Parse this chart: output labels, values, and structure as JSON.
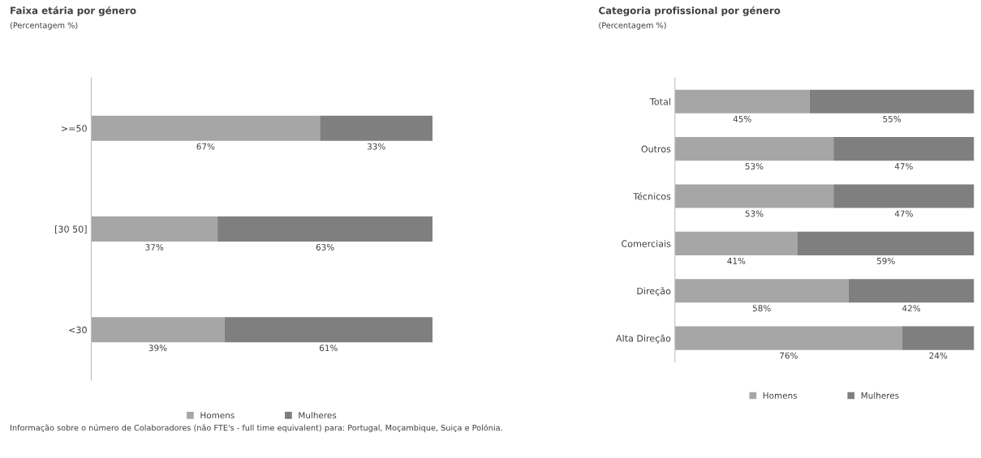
{
  "chart_data": [
    {
      "type": "bar",
      "title": "Faixa etária por género",
      "subtitle": "(Percentagem %)",
      "orientation": "horizontal",
      "stacked": true,
      "categories": [
        ">=50",
        "[30 50]",
        "<30"
      ],
      "series": [
        {
          "name": "Homens",
          "color": "#a6a6a6",
          "values": [
            67,
            37,
            39
          ],
          "value_labels": [
            "67%",
            "37%",
            "39%"
          ]
        },
        {
          "name": "Mulheres",
          "color": "#7f7f7f",
          "values": [
            33,
            63,
            61
          ],
          "value_labels": [
            "33%",
            "63%",
            "61%"
          ]
        }
      ],
      "tick_labels": "y",
      "grid": false,
      "legend": "bottom",
      "annotations": [
        "Informação sobre o número de Colaboradores (não FTE's - full time equivalent) para: Portugal, Moçambique, Suiça e Polónia."
      ]
    },
    {
      "type": "bar",
      "title": "Categoria profissional por género",
      "subtitle": "(Percentagem %)",
      "orientation": "horizontal",
      "stacked": true,
      "categories": [
        "Total",
        "Outros",
        "Técnicos",
        "Comerciais",
        "Direção",
        "Alta Direção"
      ],
      "series": [
        {
          "name": "Homens",
          "color": "#a6a6a6",
          "values": [
            45,
            53,
            53,
            41,
            58,
            76
          ],
          "value_labels": [
            "45%",
            "53%",
            "53%",
            "41%",
            "58%",
            "76%"
          ]
        },
        {
          "name": "Mulheres",
          "color": "#7f7f7f",
          "values": [
            55,
            47,
            47,
            59,
            42,
            24
          ],
          "value_labels": [
            "55%",
            "47%",
            "47%",
            "59%",
            "42%",
            "24%"
          ]
        }
      ],
      "tick_labels": "y",
      "grid": false,
      "legend": "bottom"
    }
  ]
}
